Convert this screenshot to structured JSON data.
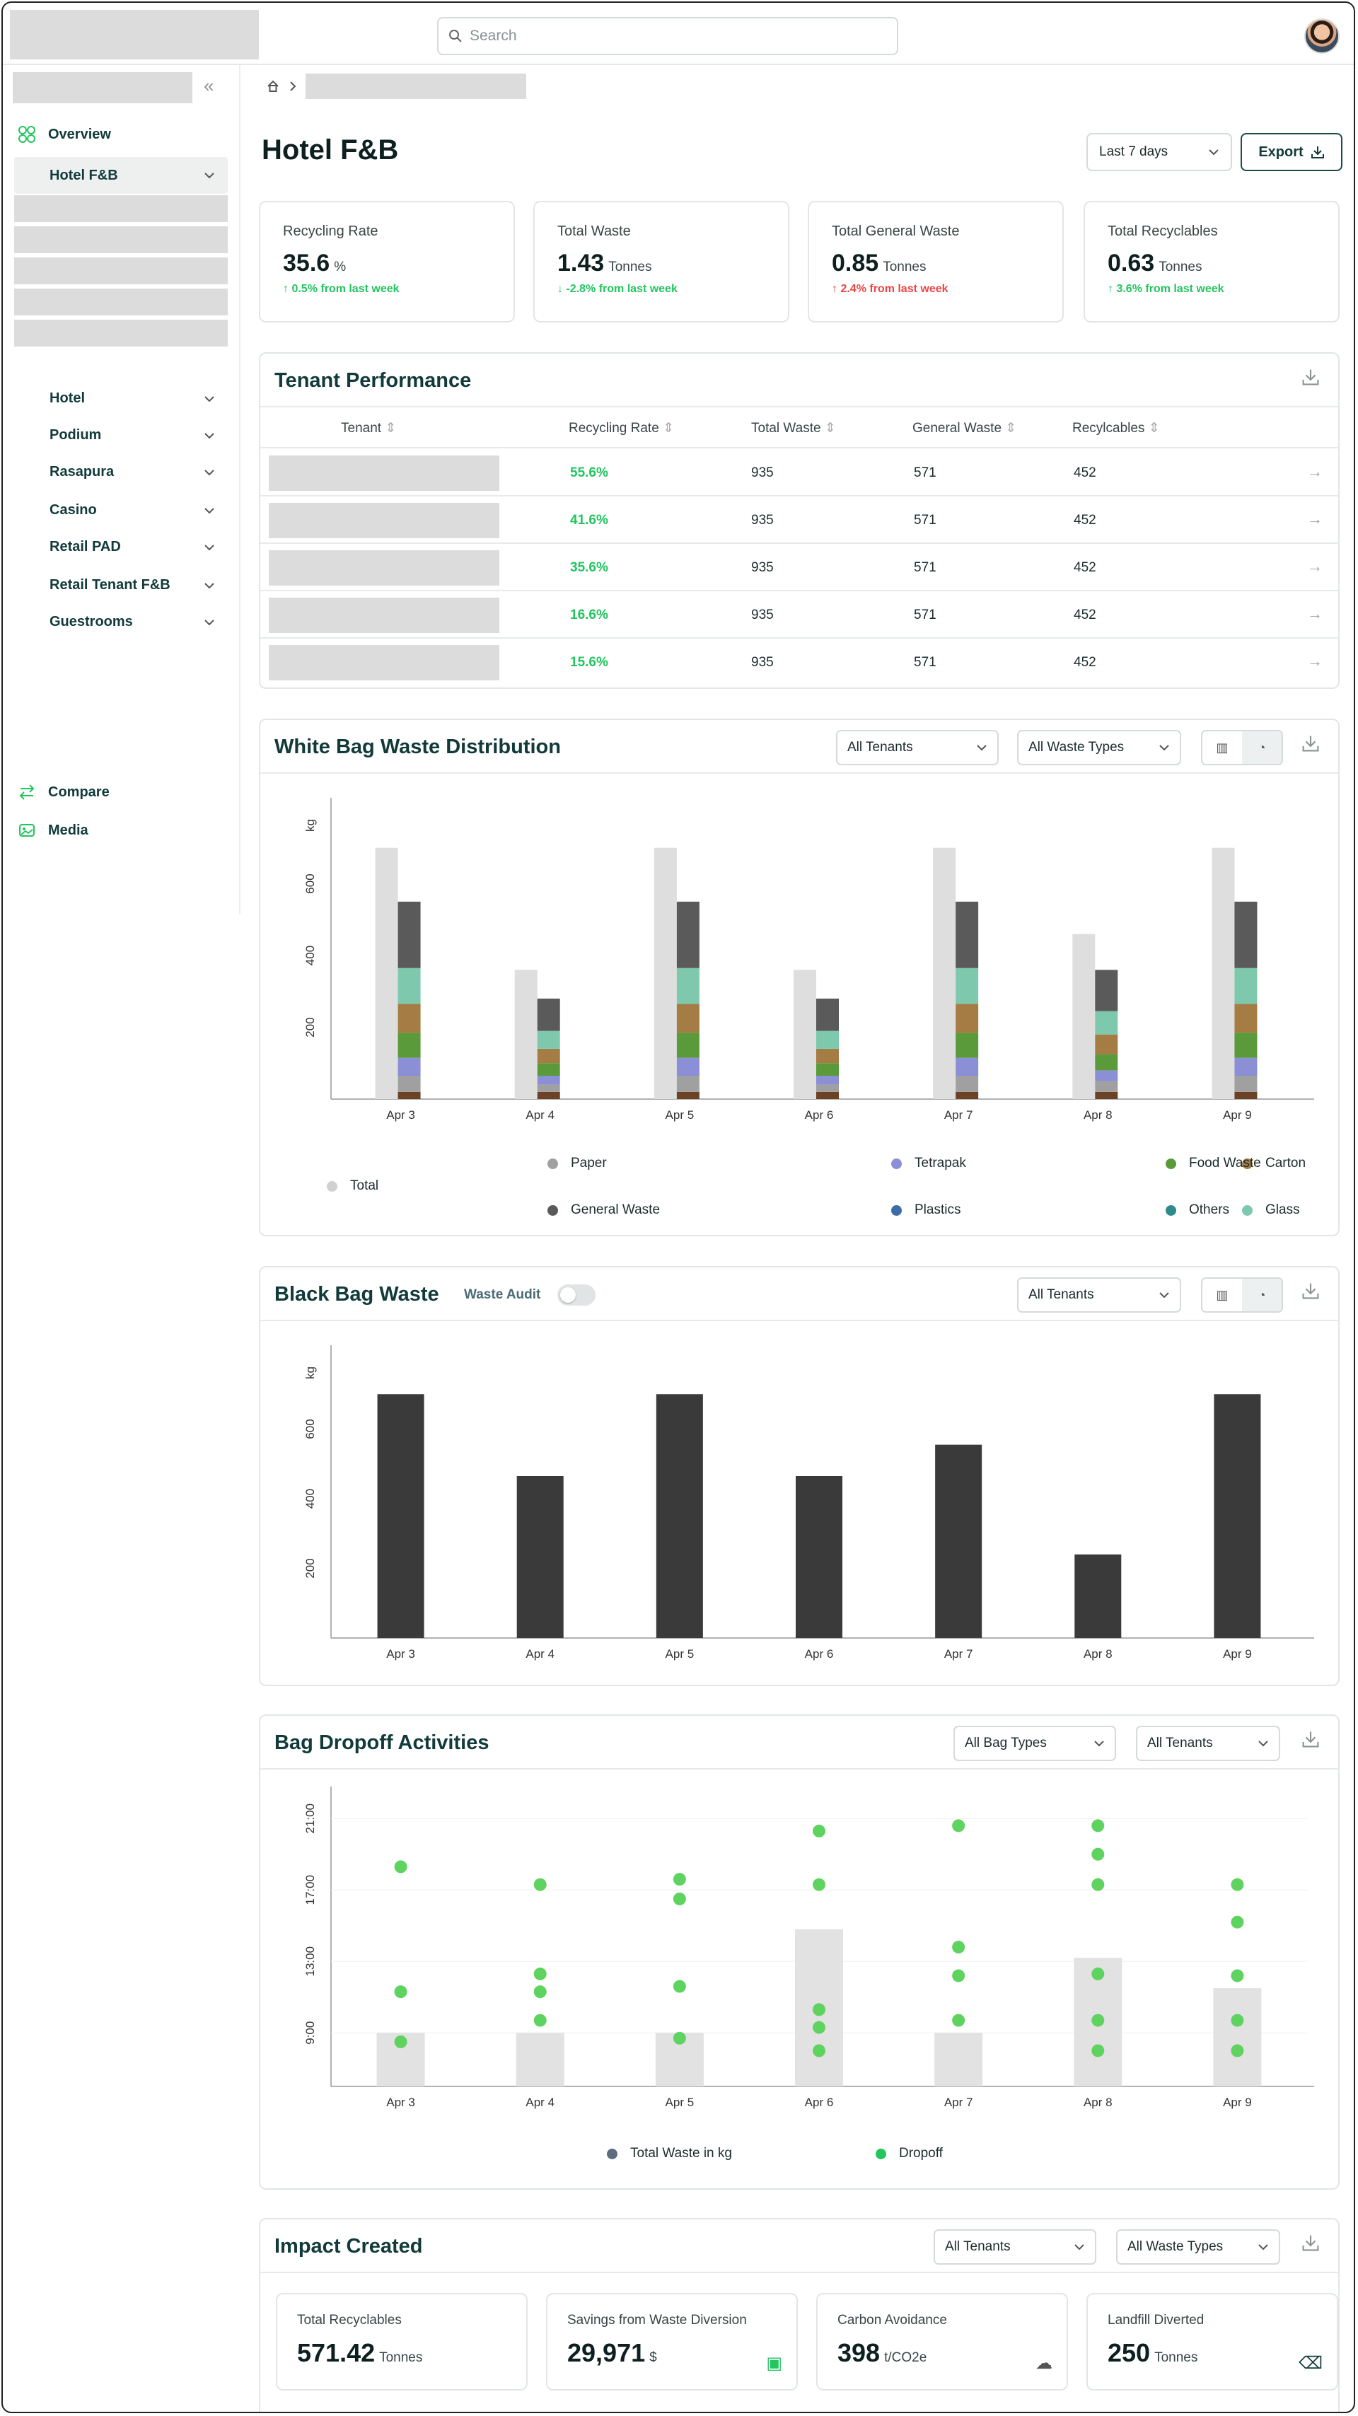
{
  "search": {
    "placeholder": "Search"
  },
  "sidebar": {
    "overview": "Overview",
    "active_sub": "Hotel F&B",
    "groups": [
      "Hotel",
      "Podium",
      "Rasapura",
      "Casino",
      "Retail PAD",
      "Retail Tenant F&B",
      "Guestrooms"
    ],
    "compare": "Compare",
    "media": "Media"
  },
  "page": {
    "title": "Hotel F&B",
    "range": "Last 7 days",
    "export": "Export"
  },
  "stats": [
    {
      "label": "Recycling Rate",
      "value": "35.6",
      "unit": "%",
      "change": "↑ 0.5% from last week",
      "dir": "up"
    },
    {
      "label": "Total Waste",
      "value": "1.43",
      "unit": "Tonnes",
      "change": "↓ -2.8% from last week",
      "dir": "up"
    },
    {
      "label": "Total General Waste",
      "value": "0.85",
      "unit": "Tonnes",
      "change": "↑ 2.4% from last week",
      "dir": "down"
    },
    {
      "label": "Total Recyclables",
      "value": "0.63",
      "unit": "Tonnes",
      "change": "↑ 3.6% from last week",
      "dir": "up"
    }
  ],
  "tenant_perf": {
    "title": "Tenant Performance",
    "headers": [
      "Tenant",
      "Recycling Rate",
      "Total Waste",
      "General Waste",
      "Recylcables"
    ],
    "rows": [
      {
        "rate": "55.6%",
        "total": "935",
        "general": "571",
        "recyc": "452"
      },
      {
        "rate": "41.6%",
        "total": "935",
        "general": "571",
        "recyc": "452"
      },
      {
        "rate": "35.6%",
        "total": "935",
        "general": "571",
        "recyc": "452"
      },
      {
        "rate": "16.6%",
        "total": "935",
        "general": "571",
        "recyc": "452"
      },
      {
        "rate": "15.6%",
        "total": "935",
        "general": "571",
        "recyc": "452"
      }
    ]
  },
  "white_bag": {
    "title": "White Bag Waste Distribution",
    "filter_tenants": "All Tenants",
    "filter_types": "All Waste Types",
    "legend_total": "Total",
    "legend": [
      "Paper",
      "Tetrapak",
      "Carton",
      "Food Waste",
      "General Waste",
      "Plastics",
      "Glass",
      "Others"
    ]
  },
  "black_bag": {
    "title": "Black Bag Waste",
    "audit_label": "Waste Audit",
    "filter_tenants": "All Tenants"
  },
  "dropoff": {
    "title": "Bag Dropoff Activities",
    "filter_bag": "All Bag Types",
    "filter_tenants": "All Tenants",
    "legend": [
      "Total Waste in kg",
      "Dropoff"
    ]
  },
  "impact": {
    "title": "Impact Created",
    "filter_tenants": "All Tenants",
    "filter_types": "All Waste Types",
    "cards": [
      {
        "label": "Total Recyclables",
        "value": "571.42",
        "unit": "Tonnes"
      },
      {
        "label": "Savings from Waste Diversion",
        "value": "29,971",
        "unit": "$"
      },
      {
        "label": "Carbon Avoidance",
        "value": "398",
        "unit": "t/CO2e"
      },
      {
        "label": "Landfill Diverted",
        "value": "250",
        "unit": "Tonnes"
      }
    ]
  },
  "colors": {
    "paper": "#a0a0a0",
    "tetrapak": "#8a8fd6",
    "carton": "#a67c45",
    "food": "#5a9a3a",
    "general": "#5a5a5a",
    "plastics": "#3b6ea5",
    "glass": "#7ec9ae",
    "others": "#2e8b8b",
    "total": "#dedede",
    "dropoff": "#5fd35f",
    "black": "#3a3a3a",
    "accent": "#22c55e"
  },
  "chart_data": [
    {
      "type": "bar",
      "name": "white_bag",
      "ylabel": "kg",
      "categories": [
        "Apr 3",
        "Apr 4",
        "Apr 5",
        "Apr 6",
        "Apr 7",
        "Apr 8",
        "Apr 9"
      ],
      "yticks": [
        200,
        400,
        600
      ],
      "ylim": [
        0,
        800
      ],
      "totals": [
        700,
        360,
        700,
        360,
        700,
        460,
        700
      ],
      "stack_order": [
        "Others",
        "Paper",
        "Plastics",
        "Tetrapak",
        "Food Waste",
        "Carton",
        "Glass",
        "General Waste"
      ],
      "series": [
        {
          "name": "Others",
          "values": [
            20,
            20,
            20,
            20,
            20,
            20,
            20
          ]
        },
        {
          "name": "Paper",
          "values": [
            45,
            20,
            45,
            20,
            45,
            30,
            45
          ]
        },
        {
          "name": "Plastics",
          "values": [
            0,
            0,
            0,
            0,
            0,
            0,
            0
          ]
        },
        {
          "name": "Tetrapak",
          "values": [
            50,
            25,
            50,
            25,
            50,
            30,
            50
          ]
        },
        {
          "name": "Food Waste",
          "values": [
            70,
            35,
            70,
            35,
            70,
            45,
            70
          ]
        },
        {
          "name": "Carton",
          "values": [
            80,
            40,
            80,
            40,
            80,
            55,
            80
          ]
        },
        {
          "name": "Glass",
          "values": [
            100,
            50,
            100,
            50,
            100,
            65,
            100
          ]
        },
        {
          "name": "General Waste",
          "values": [
            185,
            90,
            185,
            90,
            185,
            115,
            185
          ]
        }
      ]
    },
    {
      "type": "bar",
      "name": "black_bag",
      "ylabel": "kg",
      "categories": [
        "Apr 3",
        "Apr 4",
        "Apr 5",
        "Apr 6",
        "Apr 7",
        "Apr 8",
        "Apr 9"
      ],
      "yticks": [
        200,
        400,
        600
      ],
      "ylim": [
        0,
        800
      ],
      "values": [
        700,
        465,
        700,
        465,
        555,
        240,
        700
      ]
    },
    {
      "type": "scatter",
      "name": "dropoff",
      "categories": [
        "Apr 3",
        "Apr 4",
        "Apr 5",
        "Apr 6",
        "Apr 7",
        "Apr 8",
        "Apr 9"
      ],
      "yticks": [
        "9:00",
        "13:00",
        "17:00",
        "21:00"
      ],
      "ylim": [
        6,
        22
      ],
      "total_waste_bars": [
        9.0,
        9.0,
        9.0,
        14.8,
        9.0,
        13.2,
        11.5
      ],
      "dropoffs": [
        [
          18.3,
          11.3,
          8.5
        ],
        [
          17.3,
          12.3,
          11.3,
          9.7
        ],
        [
          17.6,
          16.5,
          11.6,
          8.7
        ],
        [
          20.3,
          17.3,
          10.3,
          9.3,
          8.0
        ],
        [
          20.6,
          13.8,
          12.2,
          9.7
        ],
        [
          20.6,
          19.0,
          17.3,
          12.3,
          9.7,
          8.0
        ],
        [
          17.3,
          15.2,
          12.2,
          9.7,
          8.0
        ]
      ]
    }
  ]
}
